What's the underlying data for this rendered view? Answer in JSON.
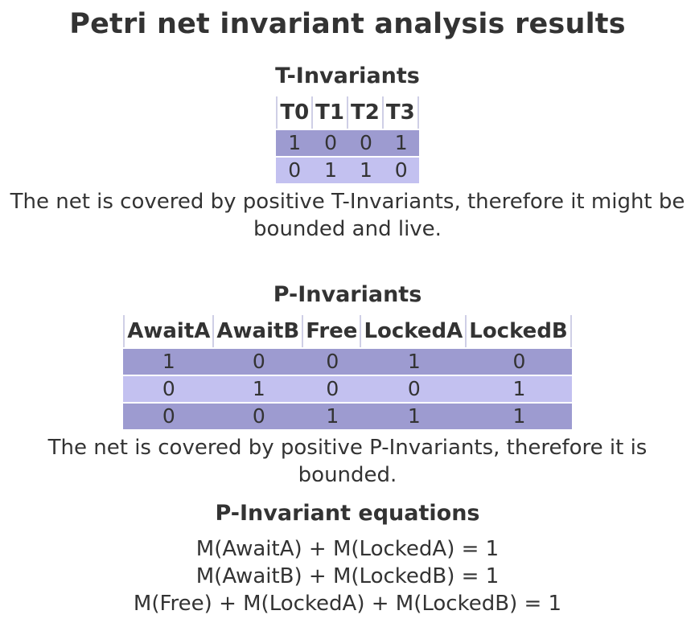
{
  "title": "Petri net invariant analysis results",
  "t_invariants": {
    "heading": "T-Invariants",
    "columns": [
      "T0",
      "T1",
      "T2",
      "T3"
    ],
    "rows": [
      [
        "1",
        "0",
        "0",
        "1"
      ],
      [
        "0",
        "1",
        "1",
        "0"
      ]
    ],
    "note": "The net is covered by positive T-Invariants, therefore it might be bounded and live."
  },
  "p_invariants": {
    "heading": "P-Invariants",
    "columns": [
      "AwaitA",
      "AwaitB",
      "Free",
      "LockedA",
      "LockedB"
    ],
    "rows": [
      [
        "1",
        "0",
        "0",
        "1",
        "0"
      ],
      [
        "0",
        "1",
        "0",
        "0",
        "1"
      ],
      [
        "0",
        "0",
        "1",
        "1",
        "1"
      ]
    ],
    "note": "The net is covered by positive P-Invariants, therefore it is bounded."
  },
  "equations": {
    "heading": "P-Invariant equations",
    "lines": [
      "M(AwaitA) + M(LockedA) = 1",
      "M(AwaitB) + M(LockedB) = 1",
      "M(Free) + M(LockedA) + M(LockedB) = 1"
    ]
  },
  "colors": {
    "row_odd": "#9d9bd0",
    "row_even": "#c3c1f0",
    "text": "#333333"
  }
}
